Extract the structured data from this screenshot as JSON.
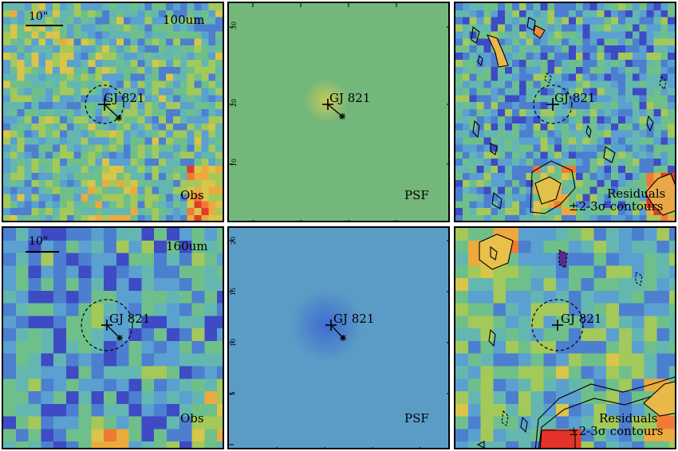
{
  "scale_bar_label": "10\"",
  "target_label": "GJ 821",
  "rows": [
    {
      "band_label": "100um",
      "colors": {
        "base": "#6fb59b",
        "psf_base": "#74b77a",
        "psf_core": "#c9c95a"
      },
      "panels": [
        {
          "type": "obs",
          "caption": "Obs"
        },
        {
          "type": "psf",
          "caption": "PSF",
          "tick_labels": [
            "30",
            "20",
            "10"
          ]
        },
        {
          "type": "residuals",
          "caption_lines": [
            "Residuals",
            "±2-3σ contours"
          ]
        }
      ]
    },
    {
      "band_label": "160um",
      "colors": {
        "base": "#5f9fc6",
        "psf_base": "#5b9cc7",
        "psf_core": "#3f6bd0"
      },
      "panels": [
        {
          "type": "obs",
          "caption": "Obs"
        },
        {
          "type": "psf",
          "caption": "PSF",
          "tick_labels": [
            "20",
            "15",
            "10",
            "5"
          ]
        },
        {
          "type": "residuals",
          "caption_lines": [
            "Residuals",
            "±2-3σ contours"
          ]
        }
      ]
    }
  ]
}
